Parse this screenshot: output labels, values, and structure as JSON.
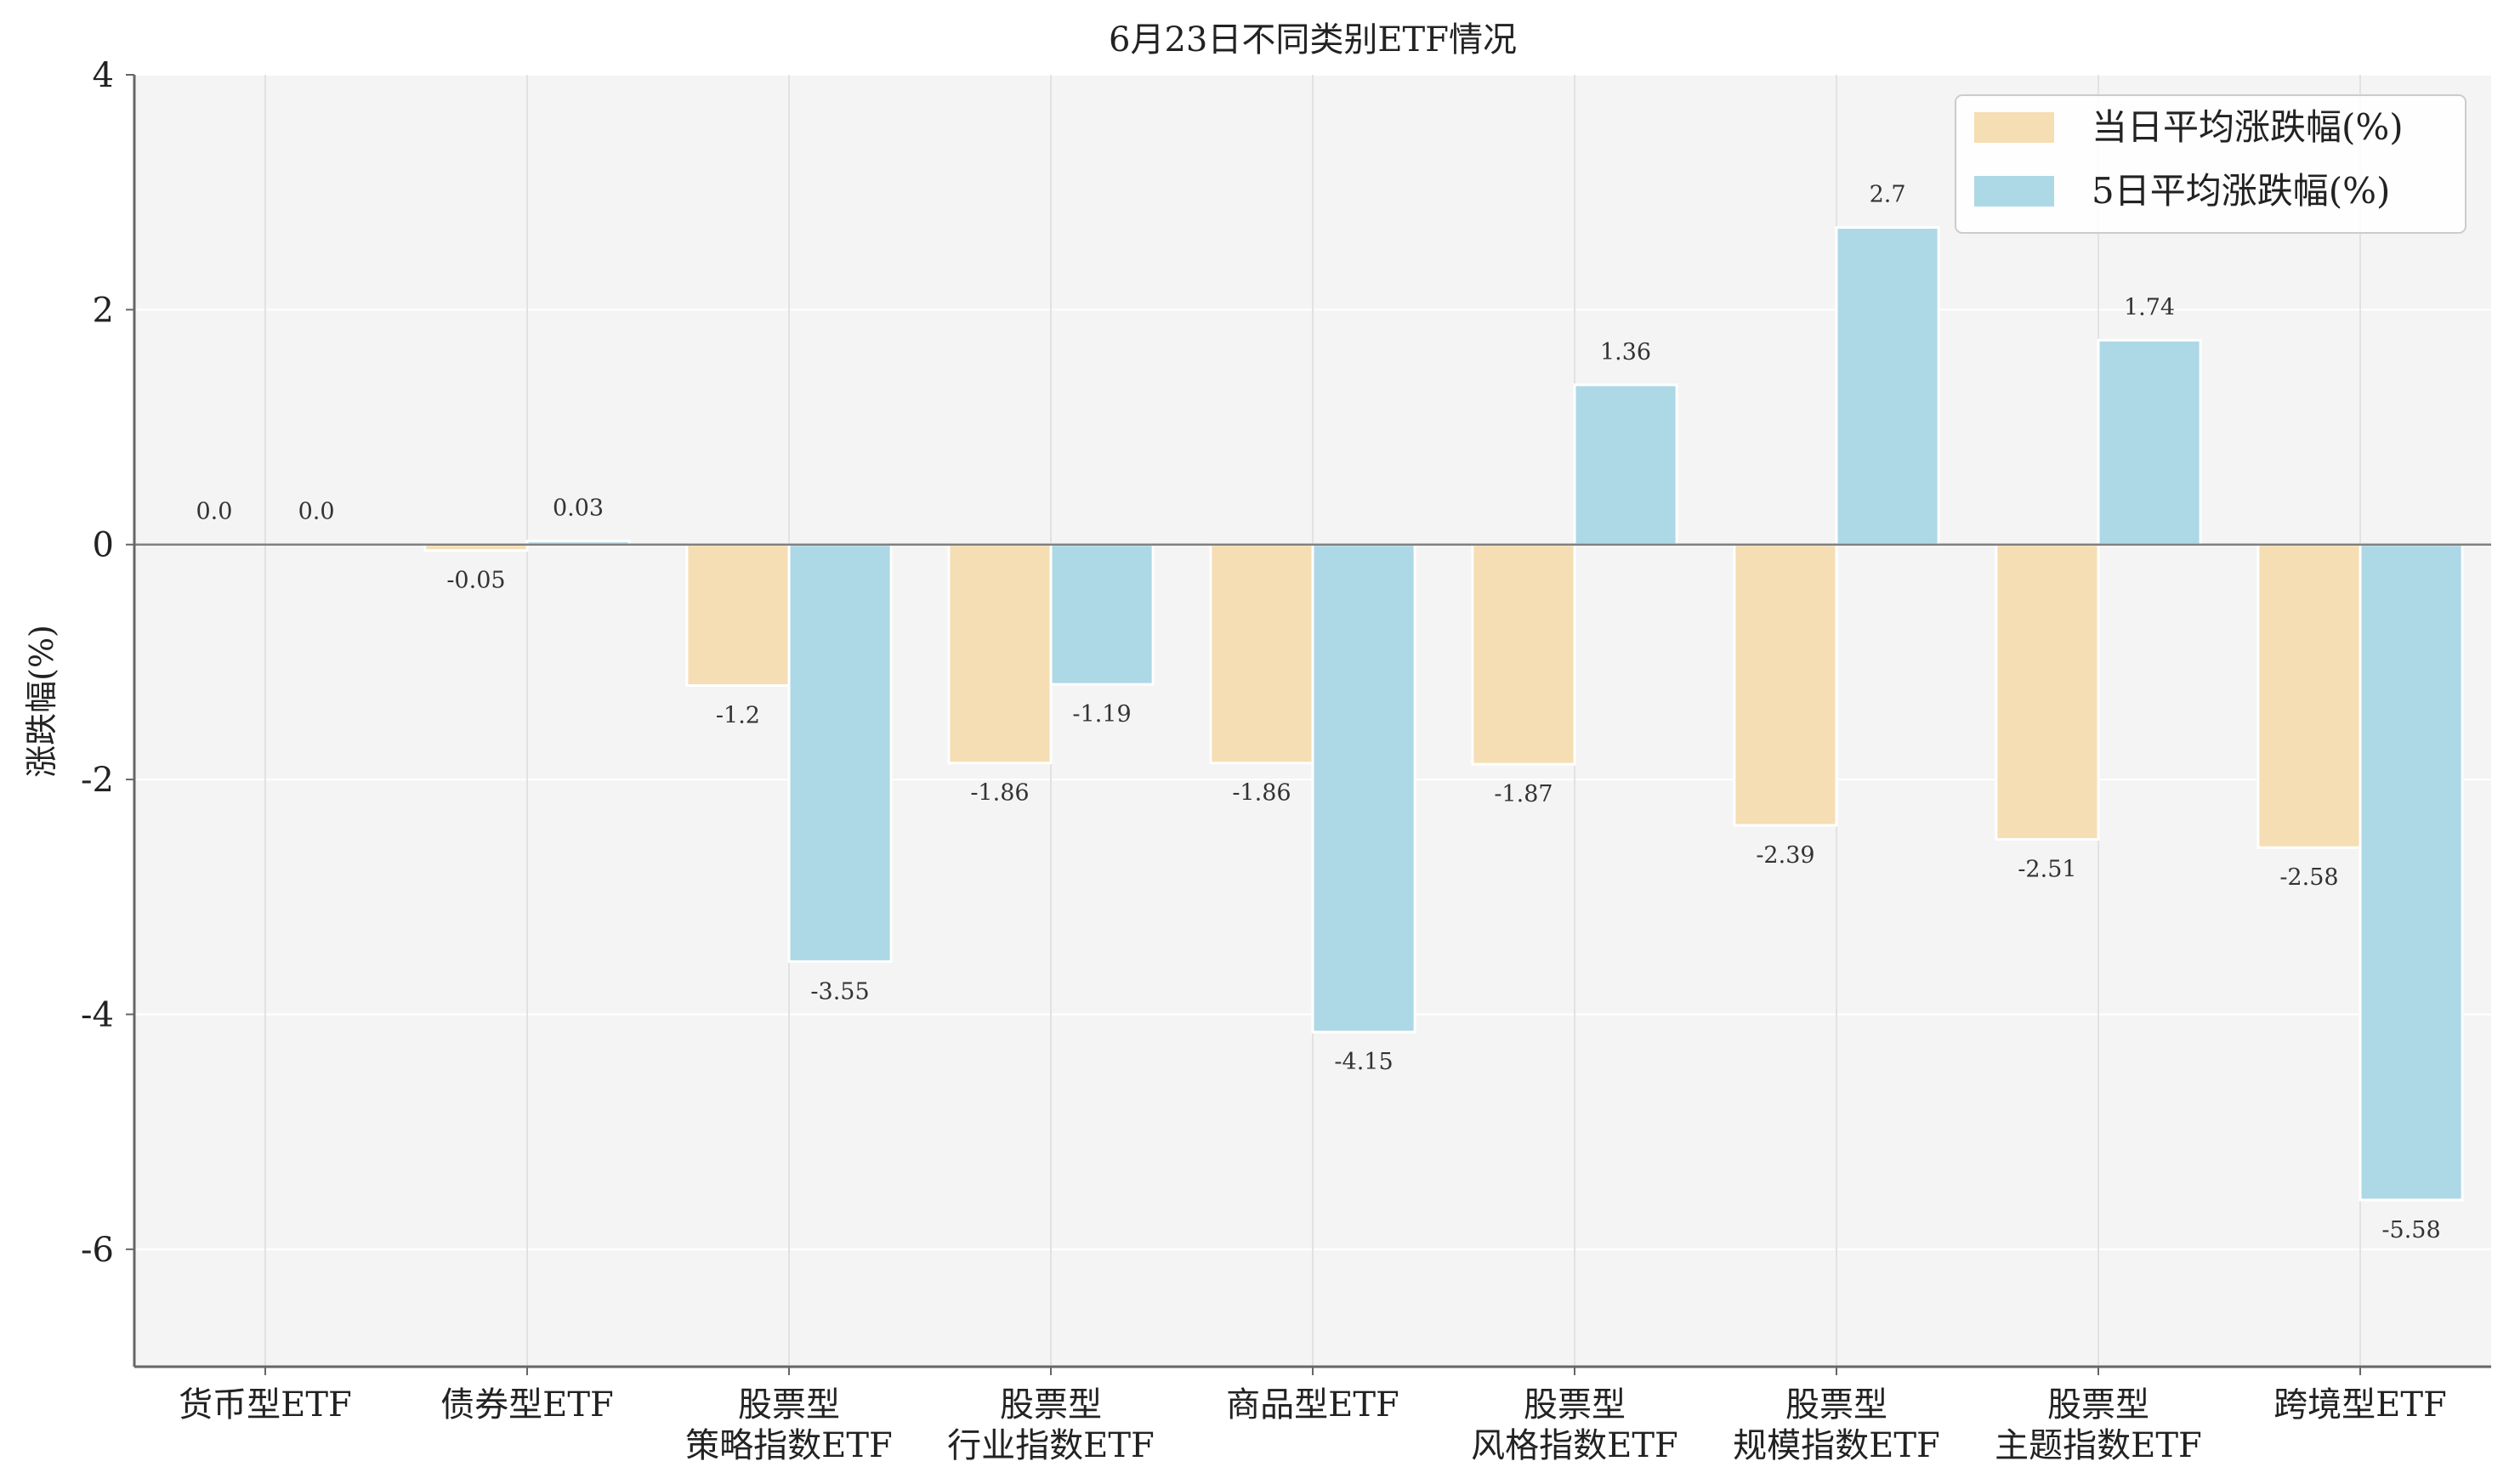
{
  "chart_data": {
    "type": "bar",
    "title": "6月23日不同类别ETF情况",
    "xlabel": "",
    "ylabel": "涨跌幅(%)",
    "ylim": [
      -7,
      4
    ],
    "yticks": [
      4,
      2,
      0,
      -2,
      -4,
      -6
    ],
    "grid": true,
    "legend_position": "top-right",
    "categories": [
      [
        "货币型ETF"
      ],
      [
        "债券型ETF"
      ],
      [
        "股票型",
        "策略指数ETF"
      ],
      [
        "股票型",
        "行业指数ETF"
      ],
      [
        "商品型ETF"
      ],
      [
        "股票型",
        "风格指数ETF"
      ],
      [
        "股票型",
        "规模指数ETF"
      ],
      [
        "股票型",
        "主题指数ETF"
      ],
      [
        "跨境型ETF"
      ]
    ],
    "series": [
      {
        "name": "当日平均涨跌幅(%)",
        "color": "#f5deb3",
        "values": [
          0.0,
          -0.05,
          -1.2,
          -1.86,
          -1.86,
          -1.87,
          -2.39,
          -2.51,
          -2.58
        ],
        "labels": [
          "0.0",
          "-0.05",
          "-1.2",
          "-1.86",
          "-1.86",
          "-1.87",
          "-2.39",
          "-2.51",
          "-2.58"
        ]
      },
      {
        "name": "5日平均涨跌幅(%)",
        "color": "#add8e6",
        "values": [
          0.0,
          0.03,
          -3.55,
          -1.19,
          -4.15,
          1.36,
          2.7,
          1.74,
          -5.58
        ],
        "labels": [
          "0.0",
          "0.03",
          "-3.55",
          "-1.19",
          "-4.15",
          "1.36",
          "2.7",
          "1.74",
          "-5.58"
        ]
      }
    ],
    "colors": {
      "plot_background": "#f4f4f4",
      "grid": "#e2e2e2",
      "zero_line": "#808080",
      "axis": "#666666"
    }
  }
}
